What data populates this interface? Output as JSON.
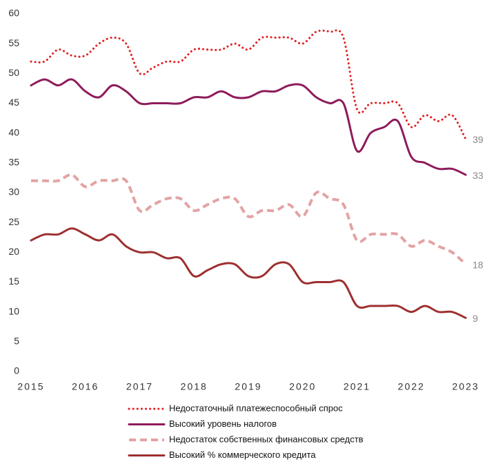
{
  "chart_data": {
    "type": "line",
    "x": [
      2015,
      2015.25,
      2015.5,
      2015.75,
      2016,
      2016.25,
      2016.5,
      2016.75,
      2017,
      2017.25,
      2017.5,
      2017.75,
      2018,
      2018.25,
      2018.5,
      2018.75,
      2019,
      2019.25,
      2019.5,
      2019.75,
      2020,
      2020.25,
      2020.5,
      2020.75,
      2021,
      2021.25,
      2021.5,
      2021.75,
      2022,
      2022.25,
      2022.5,
      2022.75,
      2023
    ],
    "series": [
      {
        "name": "Недостаточный платежеспособный спрос",
        "color": "#e31a1c",
        "style": "dotted",
        "values": [
          52,
          52,
          54,
          53,
          53,
          55,
          56,
          55,
          50,
          51,
          52,
          52,
          54,
          54,
          54,
          55,
          54,
          56,
          56,
          56,
          55,
          57,
          57,
          56,
          44,
          45,
          45,
          45,
          41,
          43,
          42,
          43,
          39
        ]
      },
      {
        "name": "Высокий уровень налогов",
        "color": "#8e1b5b",
        "style": "solid",
        "values": [
          48,
          49,
          48,
          49,
          47,
          46,
          48,
          47,
          45,
          45,
          45,
          45,
          46,
          46,
          47,
          46,
          46,
          47,
          47,
          48,
          48,
          46,
          45,
          45,
          37,
          40,
          41,
          42,
          36,
          35,
          34,
          34,
          33
        ]
      },
      {
        "name": "Недостаток собственных финансовых средств",
        "color": "#e3a3a3",
        "style": "dashed",
        "values": [
          32,
          32,
          32,
          33,
          31,
          32,
          32,
          32,
          27,
          28,
          29,
          29,
          27,
          28,
          29,
          29,
          26,
          27,
          27,
          28,
          26,
          30,
          29,
          28,
          22,
          23,
          23,
          23,
          21,
          22,
          21,
          20,
          18
        ]
      },
      {
        "name": "Высокий % коммерческого кредита",
        "color": "#9e2f2f",
        "style": "solid",
        "values": [
          22,
          23,
          23,
          24,
          23,
          22,
          23,
          21,
          20,
          20,
          19,
          19,
          16,
          17,
          18,
          18,
          16,
          16,
          18,
          18,
          15,
          15,
          15,
          15,
          11,
          11,
          11,
          11,
          10,
          11,
          10,
          10,
          9
        ]
      }
    ],
    "xlim": [
      2015,
      2023
    ],
    "xticks": [
      2015,
      2016,
      2017,
      2018,
      2019,
      2020,
      2021,
      2022,
      2023
    ],
    "ylim": [
      0,
      60
    ],
    "yticks": [
      0,
      5,
      10,
      15,
      20,
      25,
      30,
      35,
      40,
      45,
      50,
      55,
      60
    ],
    "legend": "bottom"
  }
}
